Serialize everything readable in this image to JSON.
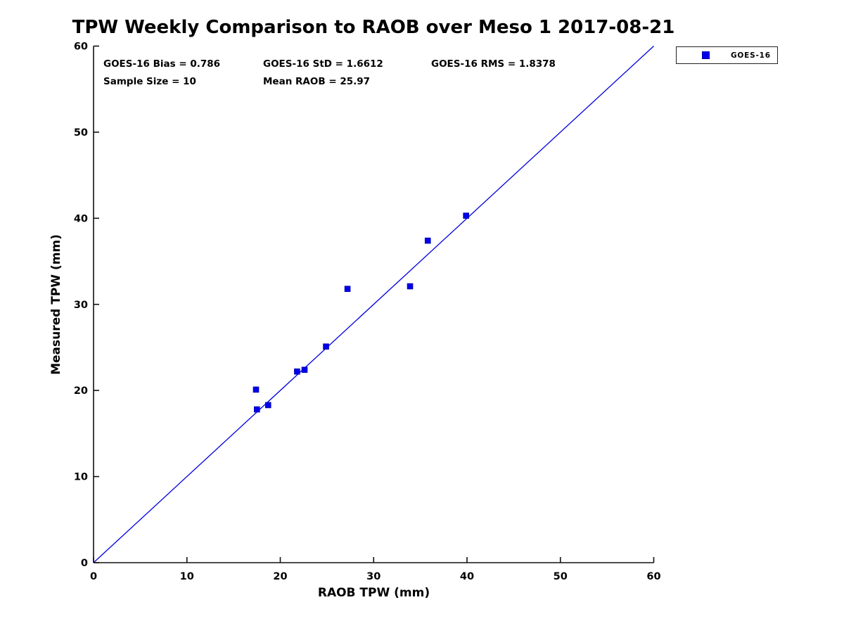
{
  "chart_data": {
    "type": "scatter",
    "title": "TPW Weekly Comparison to RAOB over Meso 1 2017-08-21",
    "xlabel": "RAOB TPW (mm)",
    "ylabel": "Measured TPW (mm)",
    "xlim": [
      0,
      60
    ],
    "ylim": [
      0,
      60
    ],
    "xticks": [
      0,
      10,
      20,
      30,
      40,
      50,
      60
    ],
    "yticks": [
      0,
      10,
      20,
      30,
      40,
      50,
      60
    ],
    "grid": false,
    "legend": {
      "position": "top-right-outside",
      "entries": [
        {
          "label": "GOES-16",
          "marker": "square"
        }
      ]
    },
    "series": [
      {
        "name": "GOES-16",
        "marker": "square",
        "points": [
          [
            17.4,
            20.1
          ],
          [
            17.5,
            17.8
          ],
          [
            18.7,
            18.3
          ],
          [
            21.8,
            22.2
          ],
          [
            22.6,
            22.4
          ],
          [
            24.9,
            25.1
          ],
          [
            27.2,
            31.8
          ],
          [
            33.9,
            32.1
          ],
          [
            35.8,
            37.4
          ],
          [
            39.9,
            40.3
          ]
        ]
      }
    ],
    "reference_line": {
      "from": [
        0,
        0
      ],
      "to": [
        60,
        60
      ]
    },
    "annotations": [
      {
        "text": "GOES-16 Bias = 0.786"
      },
      {
        "text": "GOES-16 StD = 1.6612"
      },
      {
        "text": "GOES-16 RMS = 1.8378"
      },
      {
        "text": "Sample Size = 10"
      },
      {
        "text": "Mean RAOB = 25.97"
      }
    ],
    "style": {
      "marker_color": "#0000EE",
      "marker_edge_color": "#0000BB",
      "line_color": "#0000DD",
      "axis_color": "#111111",
      "text_color": "#000000",
      "background": "#FFFFFF"
    }
  }
}
